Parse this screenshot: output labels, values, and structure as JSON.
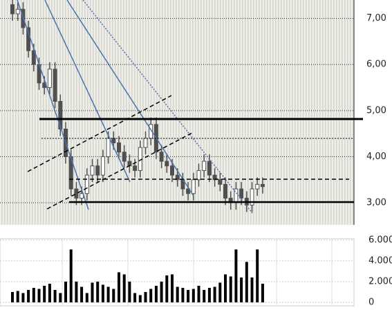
{
  "chart_data": [
    {
      "type": "candlestick",
      "open": [
        7.3,
        7.1,
        7.2,
        6.8,
        6.3,
        6.0,
        5.6,
        5.5,
        5.9,
        5.2,
        4.6,
        4.0,
        3.3,
        3.1,
        3.2,
        3.6,
        3.8,
        3.6,
        4.0,
        4.4,
        4.3,
        4.1,
        3.9,
        3.8,
        3.7,
        4.2,
        4.4,
        4.7,
        4.1,
        3.9,
        3.8,
        3.6,
        3.5,
        3.3,
        3.2,
        3.5,
        3.7,
        3.9,
        3.6,
        3.5,
        3.4,
        3.1,
        3.0,
        3.3,
        3.1,
        2.95,
        3.3,
        3.4
      ],
      "high": [
        7.45,
        7.35,
        7.35,
        6.95,
        6.45,
        6.15,
        5.75,
        6.05,
        6.05,
        5.35,
        4.75,
        4.15,
        3.45,
        3.35,
        3.75,
        3.95,
        3.95,
        4.15,
        4.55,
        4.55,
        4.45,
        4.25,
        4.05,
        3.95,
        4.35,
        4.55,
        4.85,
        4.85,
        4.25,
        4.05,
        3.95,
        3.75,
        3.65,
        3.45,
        3.65,
        3.85,
        4.05,
        4.05,
        3.75,
        3.65,
        3.55,
        3.25,
        3.45,
        3.45,
        3.25,
        3.45,
        3.55,
        3.55
      ],
      "low": [
        6.95,
        6.95,
        6.65,
        6.15,
        5.85,
        5.45,
        5.35,
        5.35,
        5.05,
        4.45,
        3.85,
        3.15,
        2.95,
        2.95,
        3.05,
        3.45,
        3.45,
        3.45,
        3.85,
        4.15,
        3.95,
        3.75,
        3.65,
        3.55,
        3.55,
        4.05,
        4.25,
        3.95,
        3.75,
        3.65,
        3.45,
        3.35,
        3.15,
        3.05,
        3.05,
        3.35,
        3.55,
        3.45,
        3.35,
        3.25,
        2.95,
        2.85,
        2.85,
        2.95,
        2.8,
        2.8,
        3.15,
        3.2
      ],
      "close": [
        7.1,
        7.2,
        6.8,
        6.3,
        6.0,
        5.6,
        5.5,
        5.9,
        5.2,
        4.6,
        4.0,
        3.3,
        3.1,
        3.2,
        3.6,
        3.8,
        3.6,
        4.0,
        4.4,
        4.3,
        4.1,
        3.9,
        3.8,
        3.7,
        4.2,
        4.4,
        4.7,
        4.1,
        3.9,
        3.8,
        3.6,
        3.5,
        3.3,
        3.2,
        3.5,
        3.7,
        3.9,
        3.6,
        3.5,
        3.4,
        3.1,
        3.0,
        3.3,
        3.1,
        2.95,
        3.3,
        3.4,
        3.35
      ],
      "ylim": [
        2.52,
        7.4
      ],
      "yticks": [
        {
          "value": 3,
          "label": "3,00"
        },
        {
          "value": 4,
          "label": "4,00"
        },
        {
          "value": 5,
          "label": "5,00"
        },
        {
          "value": 6,
          "label": "6,00"
        },
        {
          "value": 7,
          "label": "7,00"
        }
      ],
      "color": "#505050"
    },
    {
      "type": "bar",
      "values": [
        1000,
        1100,
        900,
        1200,
        1400,
        1300,
        1600,
        1800,
        1200,
        900,
        2000,
        5100,
        2000,
        1500,
        900,
        1900,
        2000,
        1700,
        1500,
        1300,
        2900,
        2700,
        2000,
        900,
        700,
        1000,
        1300,
        1600,
        2000,
        2600,
        2700,
        1500,
        1400,
        1200,
        1300,
        1600,
        1200,
        1400,
        1500,
        1900,
        2700,
        2500,
        5100,
        2400,
        3900,
        2400,
        5100,
        1800
      ],
      "ylim": [
        0,
        6000
      ],
      "yticks": [
        {
          "value": 0,
          "label": "0"
        },
        {
          "value": 2000,
          "label": "2.000"
        },
        {
          "value": 4000,
          "label": "4.000"
        },
        {
          "value": 6000,
          "label": "6.000"
        }
      ],
      "color": "#000000"
    }
  ]
}
